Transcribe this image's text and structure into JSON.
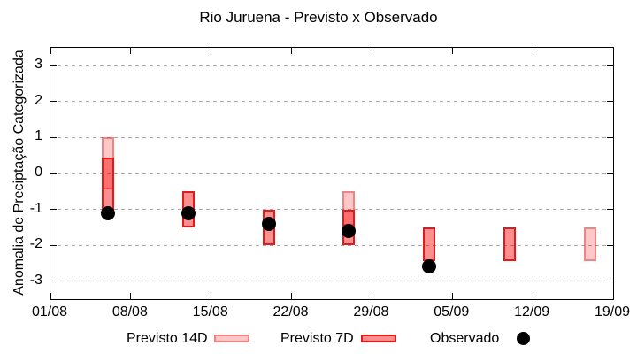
{
  "chart_data": {
    "type": "bar",
    "title": "Rio Juruena - Previsto x Observado",
    "ylabel": "Anomalia de Preciptação Categorizada",
    "ylim": [
      -3.5,
      3.5
    ],
    "yticks": [
      3,
      2,
      1,
      0,
      -1,
      -2,
      -3
    ],
    "xticks": [
      "01/08",
      "08/08",
      "15/08",
      "22/08",
      "29/08",
      "05/09",
      "12/09",
      "19/09"
    ],
    "x_day_span": 49,
    "x_days_per_tick": 7,
    "grid": "horizontal-dashed",
    "legend_position": "bottom",
    "series": [
      {
        "name": "Previsto 14D",
        "id": "previsto14d",
        "type": "range-bar",
        "points": [
          {
            "date": "06/08",
            "day": 5,
            "high": 1.0,
            "low": -0.45
          },
          {
            "date": "27/08",
            "day": 26,
            "high": -0.5,
            "low": -1.45
          },
          {
            "date": "17/09",
            "day": 47,
            "high": -1.5,
            "low": -2.45
          }
        ]
      },
      {
        "name": "Previsto 7D",
        "id": "previsto7d",
        "type": "range-bar",
        "points": [
          {
            "date": "06/08",
            "day": 5,
            "high": 0.45,
            "low": -1.05
          },
          {
            "date": "13/08",
            "day": 12,
            "high": -0.5,
            "low": -1.5
          },
          {
            "date": "20/08",
            "day": 19,
            "high": -1.0,
            "low": -2.0
          },
          {
            "date": "27/08",
            "day": 26,
            "high": -1.0,
            "low": -2.0
          },
          {
            "date": "03/09",
            "day": 33,
            "high": -1.5,
            "low": -2.45
          },
          {
            "date": "10/09",
            "day": 40,
            "high": -1.5,
            "low": -2.45
          }
        ]
      },
      {
        "name": "Observado",
        "id": "observado",
        "type": "scatter",
        "points": [
          {
            "date": "06/08",
            "day": 5,
            "value": -1.1
          },
          {
            "date": "13/08",
            "day": 12,
            "value": -1.1
          },
          {
            "date": "20/08",
            "day": 19,
            "value": -1.4
          },
          {
            "date": "27/08",
            "day": 26,
            "value": -1.6
          },
          {
            "date": "03/09",
            "day": 33,
            "value": -2.6
          }
        ]
      }
    ],
    "colors": {
      "previsto_14d_fill": "rgba(255,0,0,0.22)",
      "previsto_14d_border": "rgba(221,30,30,0.40)",
      "previsto_7d_fill": "rgba(255,0,0,0.44)",
      "previsto_7d_border": "#e31a1a",
      "observado": "#000000",
      "grid": "#a8a8a8",
      "axis": "#000000"
    }
  }
}
